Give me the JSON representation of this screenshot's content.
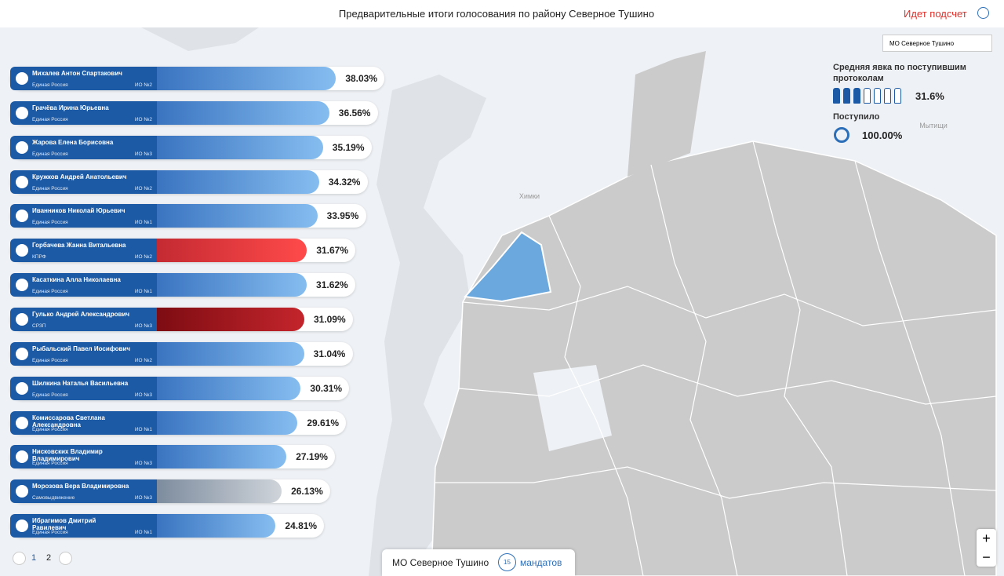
{
  "header": {
    "title": "Предварительные итоги голосования по району Северное Тушино",
    "status": "Идет подсчет"
  },
  "candidates": [
    {
      "name": "Михалев Антон Спартакович",
      "party": "Единая Россия",
      "district": "ИО №2",
      "value": 38.03,
      "value_label": "38.03%",
      "colors": [
        "#3a74c0",
        "#86bdf0"
      ]
    },
    {
      "name": "Грачёва Ирина Юрьевна",
      "party": "Единая Россия",
      "district": "ИО №2",
      "value": 36.56,
      "value_label": "36.56%",
      "colors": [
        "#3a74c0",
        "#86bdf0"
      ]
    },
    {
      "name": "Жарова Елена Борисовна",
      "party": "Единая Россия",
      "district": "ИО №3",
      "value": 35.19,
      "value_label": "35.19%",
      "colors": [
        "#3a74c0",
        "#86bdf0"
      ]
    },
    {
      "name": "Кружков Андрей Анатольевич",
      "party": "Единая Россия",
      "district": "ИО №2",
      "value": 34.32,
      "value_label": "34.32%",
      "colors": [
        "#3a74c0",
        "#86bdf0"
      ]
    },
    {
      "name": "Иванников Николай Юрьевич",
      "party": "Единая Россия",
      "district": "ИО №1",
      "value": 33.95,
      "value_label": "33.95%",
      "colors": [
        "#3a74c0",
        "#86bdf0"
      ]
    },
    {
      "name": "Горбачева Жанна Витальевна",
      "party": "КПРФ",
      "district": "ИО №2",
      "value": 31.67,
      "value_label": "31.67%",
      "colors": [
        "#c42a32",
        "#ff4a4a"
      ]
    },
    {
      "name": "Касаткина Алла Николаевна",
      "party": "Единая Россия",
      "district": "ИО №1",
      "value": 31.62,
      "value_label": "31.62%",
      "colors": [
        "#3a74c0",
        "#86bdf0"
      ]
    },
    {
      "name": "Гулько Андрей Александрович",
      "party": "СРЗП",
      "district": "ИО №3",
      "value": 31.09,
      "value_label": "31.09%",
      "colors": [
        "#7d0c12",
        "#c4252c"
      ]
    },
    {
      "name": "Рыбальский Павел Иосифович",
      "party": "Единая Россия",
      "district": "ИО №2",
      "value": 31.04,
      "value_label": "31.04%",
      "colors": [
        "#3a74c0",
        "#86bdf0"
      ]
    },
    {
      "name": "Шилкина Наталья Васильевна",
      "party": "Единая Россия",
      "district": "ИО №3",
      "value": 30.31,
      "value_label": "30.31%",
      "colors": [
        "#3a74c0",
        "#86bdf0"
      ]
    },
    {
      "name": "Комиссарова Светлана Александровна",
      "party": "Единая Россия",
      "district": "ИО №1",
      "value": 29.61,
      "value_label": "29.61%",
      "colors": [
        "#3a74c0",
        "#86bdf0"
      ]
    },
    {
      "name": "Нисковских Владимир Владимирович",
      "party": "Единая Россия",
      "district": "ИО №3",
      "value": 27.19,
      "value_label": "27.19%",
      "colors": [
        "#3a74c0",
        "#86bdf0"
      ]
    },
    {
      "name": "Морозова Вера Владимировна",
      "party": "Самовыдвижение",
      "district": "ИО №3",
      "value": 26.13,
      "value_label": "26.13%",
      "colors": [
        "#7d8c9e",
        "#cfd4da"
      ]
    },
    {
      "name": "Ибрагимов Дмитрий Равилевич",
      "party": "Единая Россия",
      "district": "ИО №1",
      "value": 24.81,
      "value_label": "24.81%",
      "colors": [
        "#3a74c0",
        "#86bdf0"
      ]
    }
  ],
  "pagination": [
    "1",
    "2"
  ],
  "side": {
    "dropdown": "МО Северное Тушино",
    "turnout_title": "Средняя явка по поступившим протоколам",
    "turnout": "31.6%",
    "received_title": "Поступило",
    "received": "100.00%"
  },
  "footer": {
    "area": "МО Северное Тушино",
    "mandates": "15",
    "mandates_label": "мандатов"
  },
  "map": {
    "labels": [
      "Химки",
      "Мытищи"
    ]
  }
}
